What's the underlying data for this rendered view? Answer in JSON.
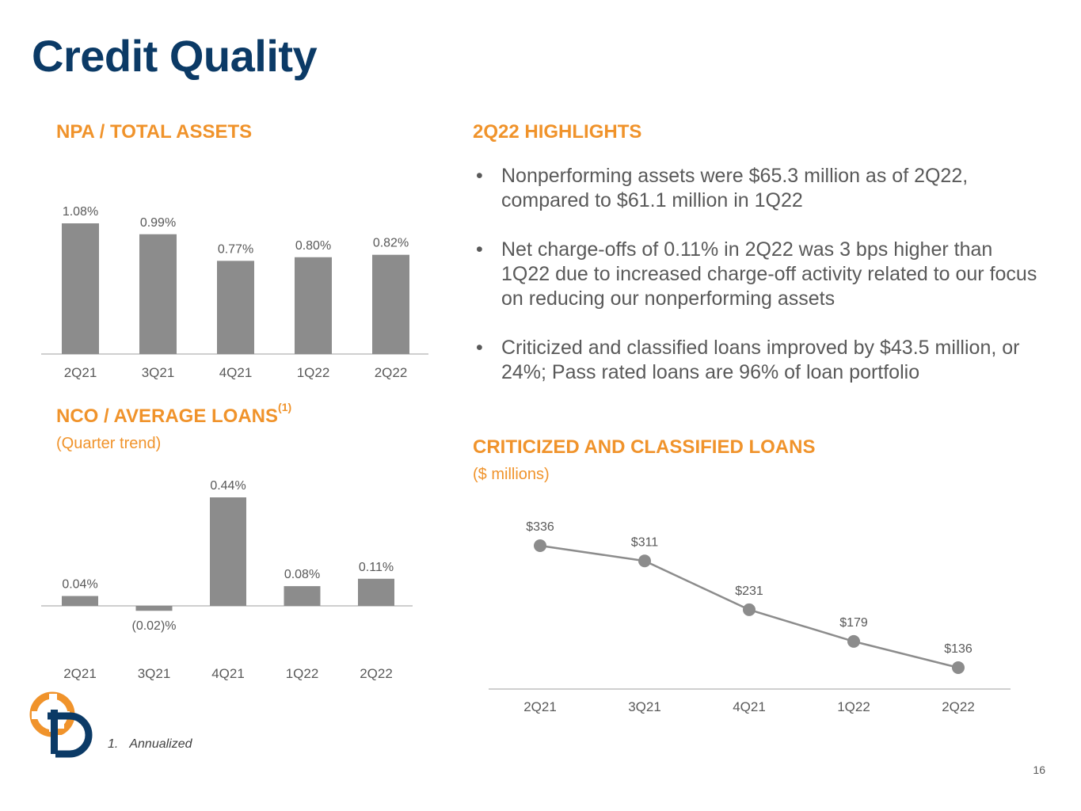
{
  "title": "Credit Quality",
  "npa": {
    "heading": "NPA / TOTAL ASSETS"
  },
  "nco": {
    "heading": "NCO / AVERAGE LOANS",
    "heading_sup": "(1)",
    "subtitle": "(Quarter trend)"
  },
  "highlights": {
    "heading": "2Q22 HIGHLIGHTS",
    "bullet_char": "•",
    "items": [
      "Nonperforming assets were $65.3 million as of 2Q22, compared to $61.1 million in 1Q22",
      "Net charge-offs of 0.11% in 2Q22 was 3 bps higher than 1Q22 due to increased charge-off activity related to our focus on reducing our nonperforming assets",
      "Criticized and classified loans improved by $43.5 million, or 24%; Pass rated loans are 96% of loan portfolio"
    ]
  },
  "criticized": {
    "heading": "CRITICIZED AND CLASSIFIED LOANS",
    "subtitle": "($ millions)"
  },
  "footnote": {
    "number": "1.",
    "text": "Annualized"
  },
  "page_number": "16",
  "colors": {
    "title": "#0b3a66",
    "accent": "#f0932b",
    "bar": "#8c8c8c",
    "text": "#595959",
    "logo_orange": "#f0932b",
    "logo_navy": "#0b3a66"
  },
  "chart_data": [
    {
      "id": "npa",
      "type": "bar",
      "categories": [
        "2Q21",
        "3Q21",
        "4Q21",
        "1Q22",
        "2Q22"
      ],
      "values": [
        1.08,
        0.99,
        0.77,
        0.8,
        0.82
      ],
      "value_labels": [
        "1.08%",
        "0.99%",
        "0.77%",
        "0.80%",
        "0.82%"
      ],
      "ylim": [
        0,
        1.15
      ]
    },
    {
      "id": "nco",
      "type": "bar",
      "categories": [
        "2Q21",
        "3Q21",
        "4Q21",
        "1Q22",
        "2Q22"
      ],
      "values": [
        0.04,
        -0.02,
        0.44,
        0.08,
        0.11
      ],
      "value_labels": [
        "0.04%",
        "(0.02)%",
        "0.44%",
        "0.08%",
        "0.11%"
      ],
      "ylim": [
        -0.02,
        0.44
      ]
    },
    {
      "id": "criticized",
      "type": "line",
      "categories": [
        "2Q21",
        "3Q21",
        "4Q21",
        "1Q22",
        "2Q22"
      ],
      "values": [
        336,
        311,
        231,
        179,
        136
      ],
      "value_labels": [
        "$336",
        "$311",
        "$231",
        "$179",
        "$136"
      ],
      "ylim": [
        100,
        336
      ]
    }
  ]
}
